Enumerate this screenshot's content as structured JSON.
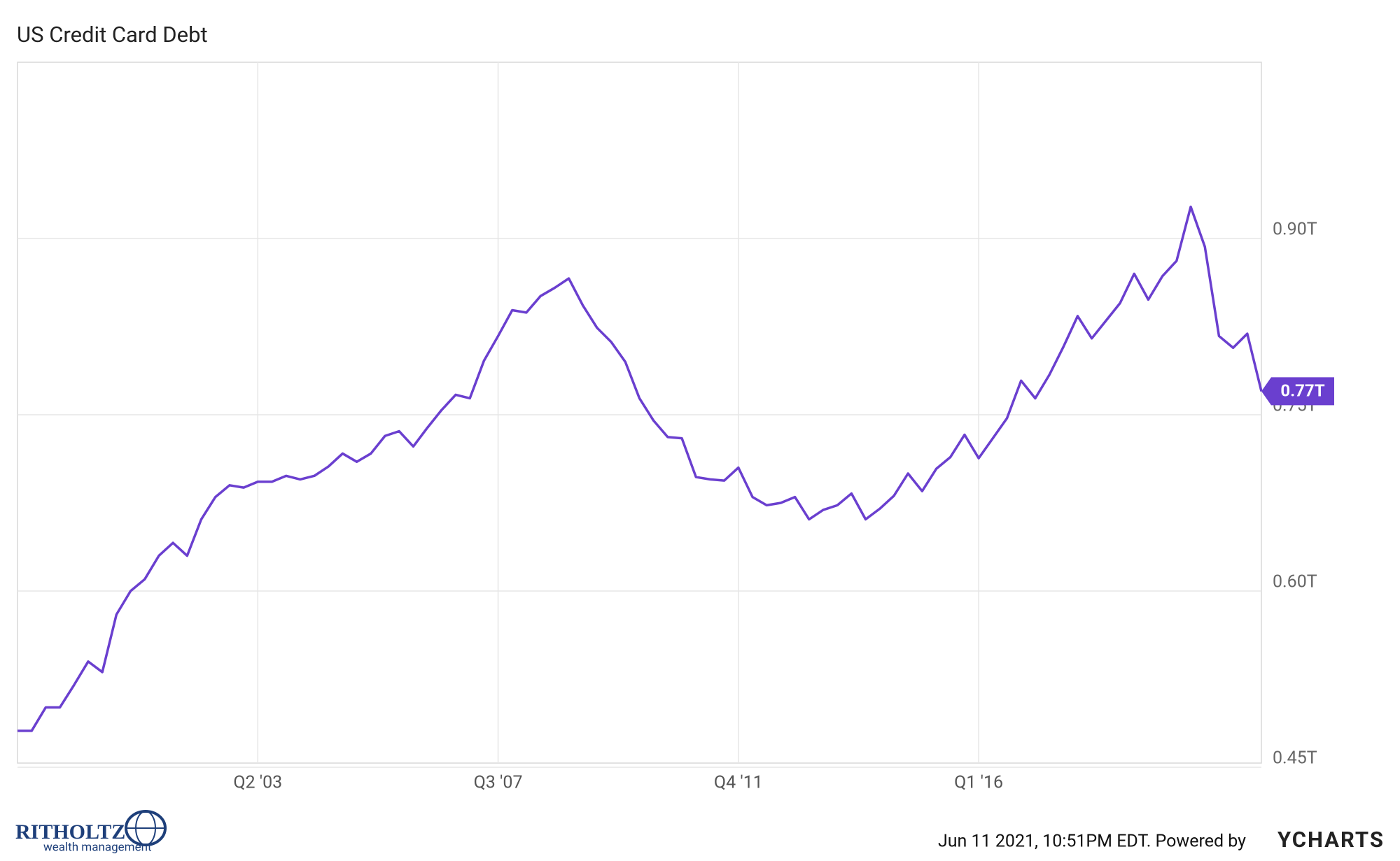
{
  "chart_data": {
    "type": "line",
    "title": "US Credit Card Debt",
    "categories": [
      null,
      null,
      null,
      null,
      null,
      null,
      null,
      null,
      null,
      null,
      null,
      null,
      null,
      null,
      null,
      null,
      null,
      "Q2 '03",
      null,
      null,
      null,
      null,
      null,
      null,
      null,
      null,
      null,
      null,
      null,
      null,
      null,
      null,
      null,
      null,
      "Q3 '07",
      null,
      null,
      null,
      null,
      null,
      null,
      null,
      null,
      null,
      null,
      null,
      null,
      null,
      null,
      null,
      null,
      "Q4 '11",
      null,
      null,
      null,
      null,
      null,
      null,
      null,
      null,
      null,
      null,
      null,
      null,
      null,
      null,
      null,
      null,
      "Q1 '16",
      null,
      null,
      null,
      null,
      null,
      null,
      null,
      null,
      null,
      null,
      null,
      null,
      null,
      null,
      null,
      null,
      null,
      null,
      null,
      null
    ],
    "series": [
      {
        "name": "US Credit Card Debt",
        "color": "#6a3fcf",
        "values": [
          0.481,
          0.481,
          0.501,
          0.501,
          0.52,
          0.54,
          0.531,
          0.58,
          0.6,
          0.61,
          0.63,
          0.641,
          0.63,
          0.661,
          0.68,
          0.69,
          0.688,
          0.693,
          0.693,
          0.698,
          0.695,
          0.698,
          0.706,
          0.717,
          0.71,
          0.717,
          0.732,
          0.736,
          0.723,
          0.739,
          0.754,
          0.767,
          0.764,
          0.796,
          0.817,
          0.839,
          0.837,
          0.851,
          0.858,
          0.866,
          0.843,
          0.824,
          0.812,
          0.795,
          0.764,
          0.745,
          0.731,
          0.73,
          0.697,
          0.695,
          0.694,
          0.705,
          0.68,
          0.673,
          0.675,
          0.68,
          0.661,
          0.669,
          0.673,
          0.683,
          0.661,
          0.67,
          0.681,
          0.7,
          0.685,
          0.704,
          0.714,
          0.733,
          0.713,
          0.73,
          0.747,
          0.779,
          0.764,
          0.784,
          0.808,
          0.834,
          0.815,
          0.83,
          0.845,
          0.87,
          0.848,
          0.868,
          0.881,
          0.927,
          0.893,
          0.817,
          0.807,
          0.819,
          0.77
        ],
        "last_value_label": "0.77T"
      }
    ],
    "ylim": [
      0.45,
      1.05
    ],
    "yticks": [
      {
        "value": 0.45,
        "label": "0.45T"
      },
      {
        "value": 0.6,
        "label": "0.60T"
      },
      {
        "value": 0.75,
        "label": "0.75T"
      },
      {
        "value": 0.9,
        "label": "0.90T"
      }
    ],
    "grid": true,
    "footer": {
      "timestamp": "Jun 11 2021, 10:51PM EDT. Powered by",
      "brand": "YCHARTS",
      "logo_name": "RITHOLTZ",
      "logo_sub": "wealth management"
    }
  }
}
